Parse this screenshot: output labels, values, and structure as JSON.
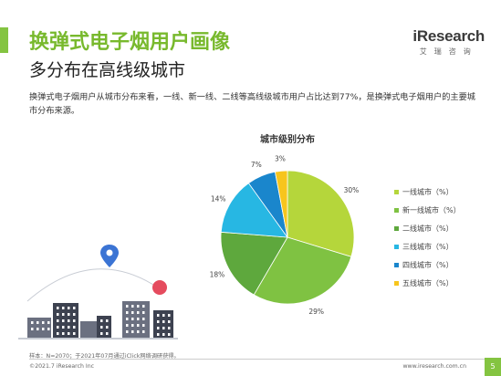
{
  "colors": {
    "accent": "#84c441",
    "title": "#78b92d",
    "pin_blue": "#3b74d4",
    "pin_red": "#e54b5e",
    "building": "#3d4250",
    "building_light": "#6b7080"
  },
  "header": {
    "title": "换弹式电子烟用户画像",
    "subtitle": "多分布在高线级城市"
  },
  "logo": {
    "text": "iResearch",
    "sub": "艾瑞咨询"
  },
  "body_text": "换弹式电子烟用户从城市分布来看，一线、新一线、二线等高线级城市用户占比达到77%，是换弹式电子烟用户的主要城市分布来源。",
  "chart_data": {
    "type": "pie",
    "title": "城市级别分布",
    "legend_position": "right",
    "series": [
      {
        "name": "一线城市（%）",
        "value": 30,
        "label": "30%",
        "color": "#b5d63b"
      },
      {
        "name": "新一线城市（%）",
        "value": 29,
        "label": "29%",
        "color": "#7fc242"
      },
      {
        "name": "二线城市（%）",
        "value": 18,
        "label": "18%",
        "color": "#5ea83d"
      },
      {
        "name": "三线城市（%）",
        "value": 14,
        "label": "14%",
        "color": "#27b7e3"
      },
      {
        "name": "四线城市（%）",
        "value": 7,
        "label": "7%",
        "color": "#1a86cc"
      },
      {
        "name": "五线城市（%）",
        "value": 3,
        "label": "3%",
        "color": "#f7c51d"
      }
    ]
  },
  "footer": {
    "note": "样本：N=2070；于2021年07月通过iClick网络调研获得。",
    "copyright": "©2021.7 iResearch Inc",
    "website": "www.iresearch.com.cn",
    "page": "5"
  }
}
